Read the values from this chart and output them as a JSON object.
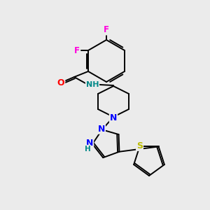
{
  "bg_color": "#ebebeb",
  "bond_color": "#000000",
  "atom_colors": {
    "F": "#ff00dd",
    "O": "#ff0000",
    "N": "#0000ff",
    "S": "#bbbb00",
    "H_color": "#008888",
    "C": "#000000"
  },
  "figsize": [
    3.0,
    3.0
  ],
  "dpi": 100
}
